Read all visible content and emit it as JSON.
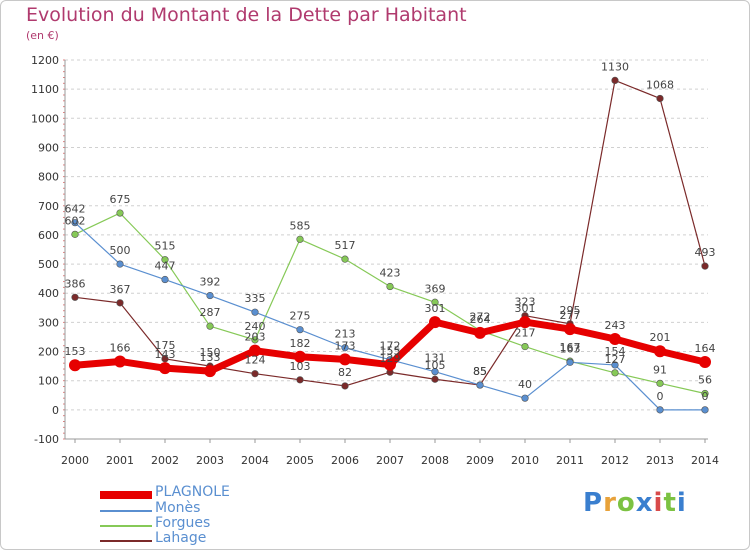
{
  "title": "Evolution du Montant de la Dette par Habitant",
  "subtitle": "(en €)",
  "logo": {
    "text": "Proxiti",
    "colors": [
      "#3a7fcf",
      "#e8a23a",
      "#7cc242",
      "#3a7fcf",
      "#d84a4a",
      "#7cc242",
      "#3a7fcf"
    ]
  },
  "chart_data": {
    "type": "line",
    "title": "Evolution du Montant de la Dette par Habitant",
    "ylabel": "(en €)",
    "xlabel": "",
    "ylim": [
      -100,
      1200
    ],
    "yticks": [
      -100,
      0,
      100,
      200,
      300,
      400,
      500,
      600,
      700,
      800,
      900,
      1000,
      1100,
      1200
    ],
    "grid": "horizontal-dashed",
    "legend_position": "bottom-left",
    "categories": [
      "2000",
      "2001",
      "2002",
      "2003",
      "2004",
      "2005",
      "2006",
      "2007",
      "2008",
      "2009",
      "2010",
      "2011",
      "2012",
      "2013",
      "2014"
    ],
    "series": [
      {
        "name": "Lahage",
        "color": "#7b2a2a",
        "width": 1.2,
        "values": [
          386,
          367,
          175,
          150,
          124,
          103,
          82,
          129,
          105,
          85,
          323,
          295,
          1130,
          1068,
          493
        ],
        "labels": [
          "386",
          "367",
          "175",
          "150",
          "124",
          "103",
          "82",
          "129",
          "105",
          "85",
          "323",
          "295",
          "1130",
          "1068",
          "493"
        ]
      },
      {
        "name": "Forgues",
        "color": "#86c957",
        "width": 1.2,
        "values": [
          602,
          675,
          515,
          287,
          240,
          585,
          517,
          423,
          369,
          272,
          217,
          167,
          127,
          91,
          56
        ],
        "labels": [
          "602",
          "675",
          "515",
          "287",
          "240",
          "585",
          "517",
          "423",
          "369",
          "272",
          "217",
          "167",
          "127",
          "91",
          "56"
        ]
      },
      {
        "name": "Monès",
        "color": "#5a8fd0",
        "width": 1.2,
        "values": [
          642,
          500,
          447,
          392,
          335,
          275,
          213,
          172,
          131,
          85,
          40,
          163,
          154,
          0,
          0
        ],
        "labels": [
          "642",
          "500",
          "447",
          "392",
          "335",
          "275",
          "213",
          "172",
          "131",
          "85",
          "40",
          "163",
          "154",
          "0",
          "0"
        ]
      },
      {
        "name": "PLAGNOLE",
        "color": "#e60000",
        "width": 7,
        "values": [
          153,
          166,
          143,
          133,
          203,
          182,
          173,
          155,
          301,
          264,
          301,
          277,
          243,
          201,
          164
        ],
        "labels": [
          "153",
          "166",
          "143",
          "133",
          "203",
          "182",
          "173",
          "155",
          "301",
          "264",
          "301",
          "277",
          "243",
          "201",
          "164"
        ]
      }
    ]
  },
  "legend": [
    {
      "name": "PLAGNOLE",
      "color": "#e60000",
      "thickness": 8
    },
    {
      "name": "Monès",
      "color": "#5a8fd0",
      "thickness": 2
    },
    {
      "name": "Forgues",
      "color": "#86c957",
      "thickness": 2
    },
    {
      "name": "Lahage",
      "color": "#7b2a2a",
      "thickness": 2
    }
  ]
}
